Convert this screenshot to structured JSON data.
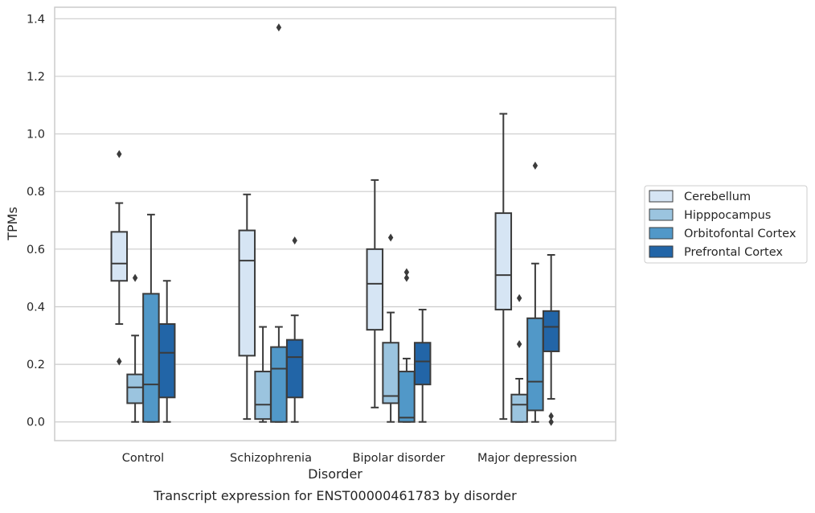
{
  "chart_data": {
    "type": "box",
    "caption": "Transcript expression for ENST00000461783 by disorder",
    "xlabel": "Disorder",
    "ylabel": "TPMs",
    "ylim": [
      -0.065,
      1.44
    ],
    "yticks": [
      "0.0",
      "0.2",
      "0.4",
      "0.6",
      "0.8",
      "1.0",
      "1.2",
      "1.4"
    ],
    "ytick_values": [
      0.0,
      0.2,
      0.4,
      0.6,
      0.8,
      1.0,
      1.2,
      1.4
    ],
    "grid": true,
    "legend_position": "right",
    "categories": [
      "Control",
      "Schizophrenia",
      "Bipolar disorder",
      "Major depression"
    ],
    "series": [
      {
        "name": "Cerebellum",
        "color": "#d6e5f4",
        "boxes": [
          {
            "whislo": 0.34,
            "q1": 0.49,
            "med": 0.55,
            "q3": 0.66,
            "whishi": 0.76,
            "fliers": [
              0.93,
              0.21
            ]
          },
          {
            "whislo": 0.01,
            "q1": 0.23,
            "med": 0.56,
            "q3": 0.665,
            "whishi": 0.79,
            "fliers": []
          },
          {
            "whislo": 0.05,
            "q1": 0.32,
            "med": 0.48,
            "q3": 0.6,
            "whishi": 0.84,
            "fliers": []
          },
          {
            "whislo": 0.01,
            "q1": 0.39,
            "med": 0.51,
            "q3": 0.725,
            "whishi": 1.07,
            "fliers": []
          }
        ]
      },
      {
        "name": "Hipppocampus",
        "color": "#9bc4df",
        "boxes": [
          {
            "whislo": 0.0,
            "q1": 0.065,
            "med": 0.12,
            "q3": 0.165,
            "whishi": 0.3,
            "fliers": [
              0.5
            ]
          },
          {
            "whislo": 0.0,
            "q1": 0.01,
            "med": 0.06,
            "q3": 0.175,
            "whishi": 0.33,
            "fliers": []
          },
          {
            "whislo": 0.0,
            "q1": 0.065,
            "med": 0.09,
            "q3": 0.275,
            "whishi": 0.38,
            "fliers": [
              0.64
            ]
          },
          {
            "whislo": 0.0,
            "q1": 0.0,
            "med": 0.06,
            "q3": 0.095,
            "whishi": 0.15,
            "fliers": [
              0.43,
              0.27
            ]
          }
        ]
      },
      {
        "name": "Orbitofontal Cortex",
        "color": "#5198c8",
        "boxes": [
          {
            "whislo": 0.0,
            "q1": 0.0,
            "med": 0.13,
            "q3": 0.445,
            "whishi": 0.72,
            "fliers": []
          },
          {
            "whislo": 0.0,
            "q1": 0.0,
            "med": 0.185,
            "q3": 0.26,
            "whishi": 0.33,
            "fliers": [
              1.37
            ]
          },
          {
            "whislo": 0.0,
            "q1": 0.0,
            "med": 0.015,
            "q3": 0.175,
            "whishi": 0.22,
            "fliers": [
              0.5,
              0.52
            ]
          },
          {
            "whislo": 0.0,
            "q1": 0.04,
            "med": 0.14,
            "q3": 0.36,
            "whishi": 0.55,
            "fliers": [
              0.89
            ]
          }
        ]
      },
      {
        "name": "Prefrontal Cortex",
        "color": "#2265a7",
        "boxes": [
          {
            "whislo": 0.0,
            "q1": 0.085,
            "med": 0.24,
            "q3": 0.34,
            "whishi": 0.49,
            "fliers": []
          },
          {
            "whislo": 0.0,
            "q1": 0.085,
            "med": 0.225,
            "q3": 0.285,
            "whishi": 0.37,
            "fliers": [
              0.63
            ]
          },
          {
            "whislo": 0.0,
            "q1": 0.13,
            "med": 0.21,
            "q3": 0.275,
            "whishi": 0.39,
            "fliers": []
          },
          {
            "whislo": 0.08,
            "q1": 0.245,
            "med": 0.33,
            "q3": 0.385,
            "whishi": 0.58,
            "fliers": [
              0.02,
              0.0
            ]
          }
        ]
      }
    ]
  }
}
